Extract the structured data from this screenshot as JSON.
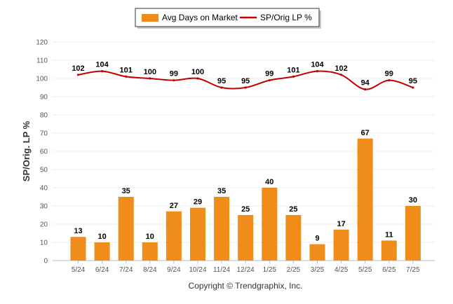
{
  "chart_data": {
    "type": "bar",
    "categories": [
      "5/24",
      "6/24",
      "7/24",
      "8/24",
      "9/24",
      "10/24",
      "11/24",
      "12/24",
      "1/25",
      "2/25",
      "3/25",
      "4/25",
      "5/25",
      "6/25",
      "7/25"
    ],
    "series": [
      {
        "name": "Avg Days on Market",
        "type": "bar",
        "color": "#f08c1a",
        "values": [
          13,
          10,
          35,
          10,
          27,
          29,
          35,
          25,
          40,
          25,
          9,
          17,
          67,
          11,
          30
        ]
      },
      {
        "name": "SP/Orig LP %",
        "type": "line",
        "color": "#c00000",
        "values": [
          102,
          104,
          101,
          100,
          99,
          100,
          95,
          95,
          99,
          101,
          104,
          102,
          94,
          99,
          95
        ]
      }
    ],
    "ylabel": "SP/Orig. LP %",
    "xlabel": "",
    "ylim": [
      0,
      120
    ],
    "yticks": [
      0,
      10,
      20,
      30,
      40,
      50,
      60,
      70,
      80,
      90,
      100,
      110,
      120
    ],
    "grid": true,
    "legend_position": "top-center"
  },
  "footer": "Copyright © Trendgraphix, Inc."
}
